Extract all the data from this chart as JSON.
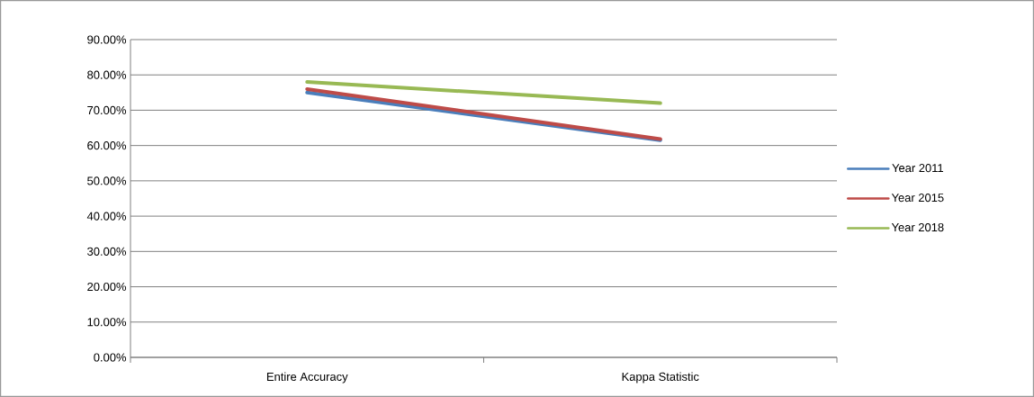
{
  "chart_data": {
    "type": "line",
    "categories": [
      "Entire Accuracy",
      "Kappa Statistic"
    ],
    "series": [
      {
        "name": "Year 2011",
        "color": "#4a7ebb",
        "values": [
          75,
          61.5
        ]
      },
      {
        "name": "Year 2015",
        "color": "#be4b48",
        "values": [
          76,
          61.8
        ]
      },
      {
        "name": "Year 2018",
        "color": "#98b954",
        "values": [
          78,
          72
        ]
      }
    ],
    "ylim": [
      0,
      90
    ],
    "yticks": [
      {
        "value": 0,
        "label": "0.00%"
      },
      {
        "value": 10,
        "label": "10.00%"
      },
      {
        "value": 20,
        "label": "20.00%"
      },
      {
        "value": 30,
        "label": "30.00%"
      },
      {
        "value": 40,
        "label": "40.00%"
      },
      {
        "value": 50,
        "label": "50.00%"
      },
      {
        "value": 60,
        "label": "60.00%"
      },
      {
        "value": 70,
        "label": "70.00%"
      },
      {
        "value": 80,
        "label": "80.00%"
      },
      {
        "value": 90,
        "label": "90.00%"
      }
    ],
    "grid": "y",
    "legend": "right",
    "marker": "none",
    "line_style": "solid"
  }
}
